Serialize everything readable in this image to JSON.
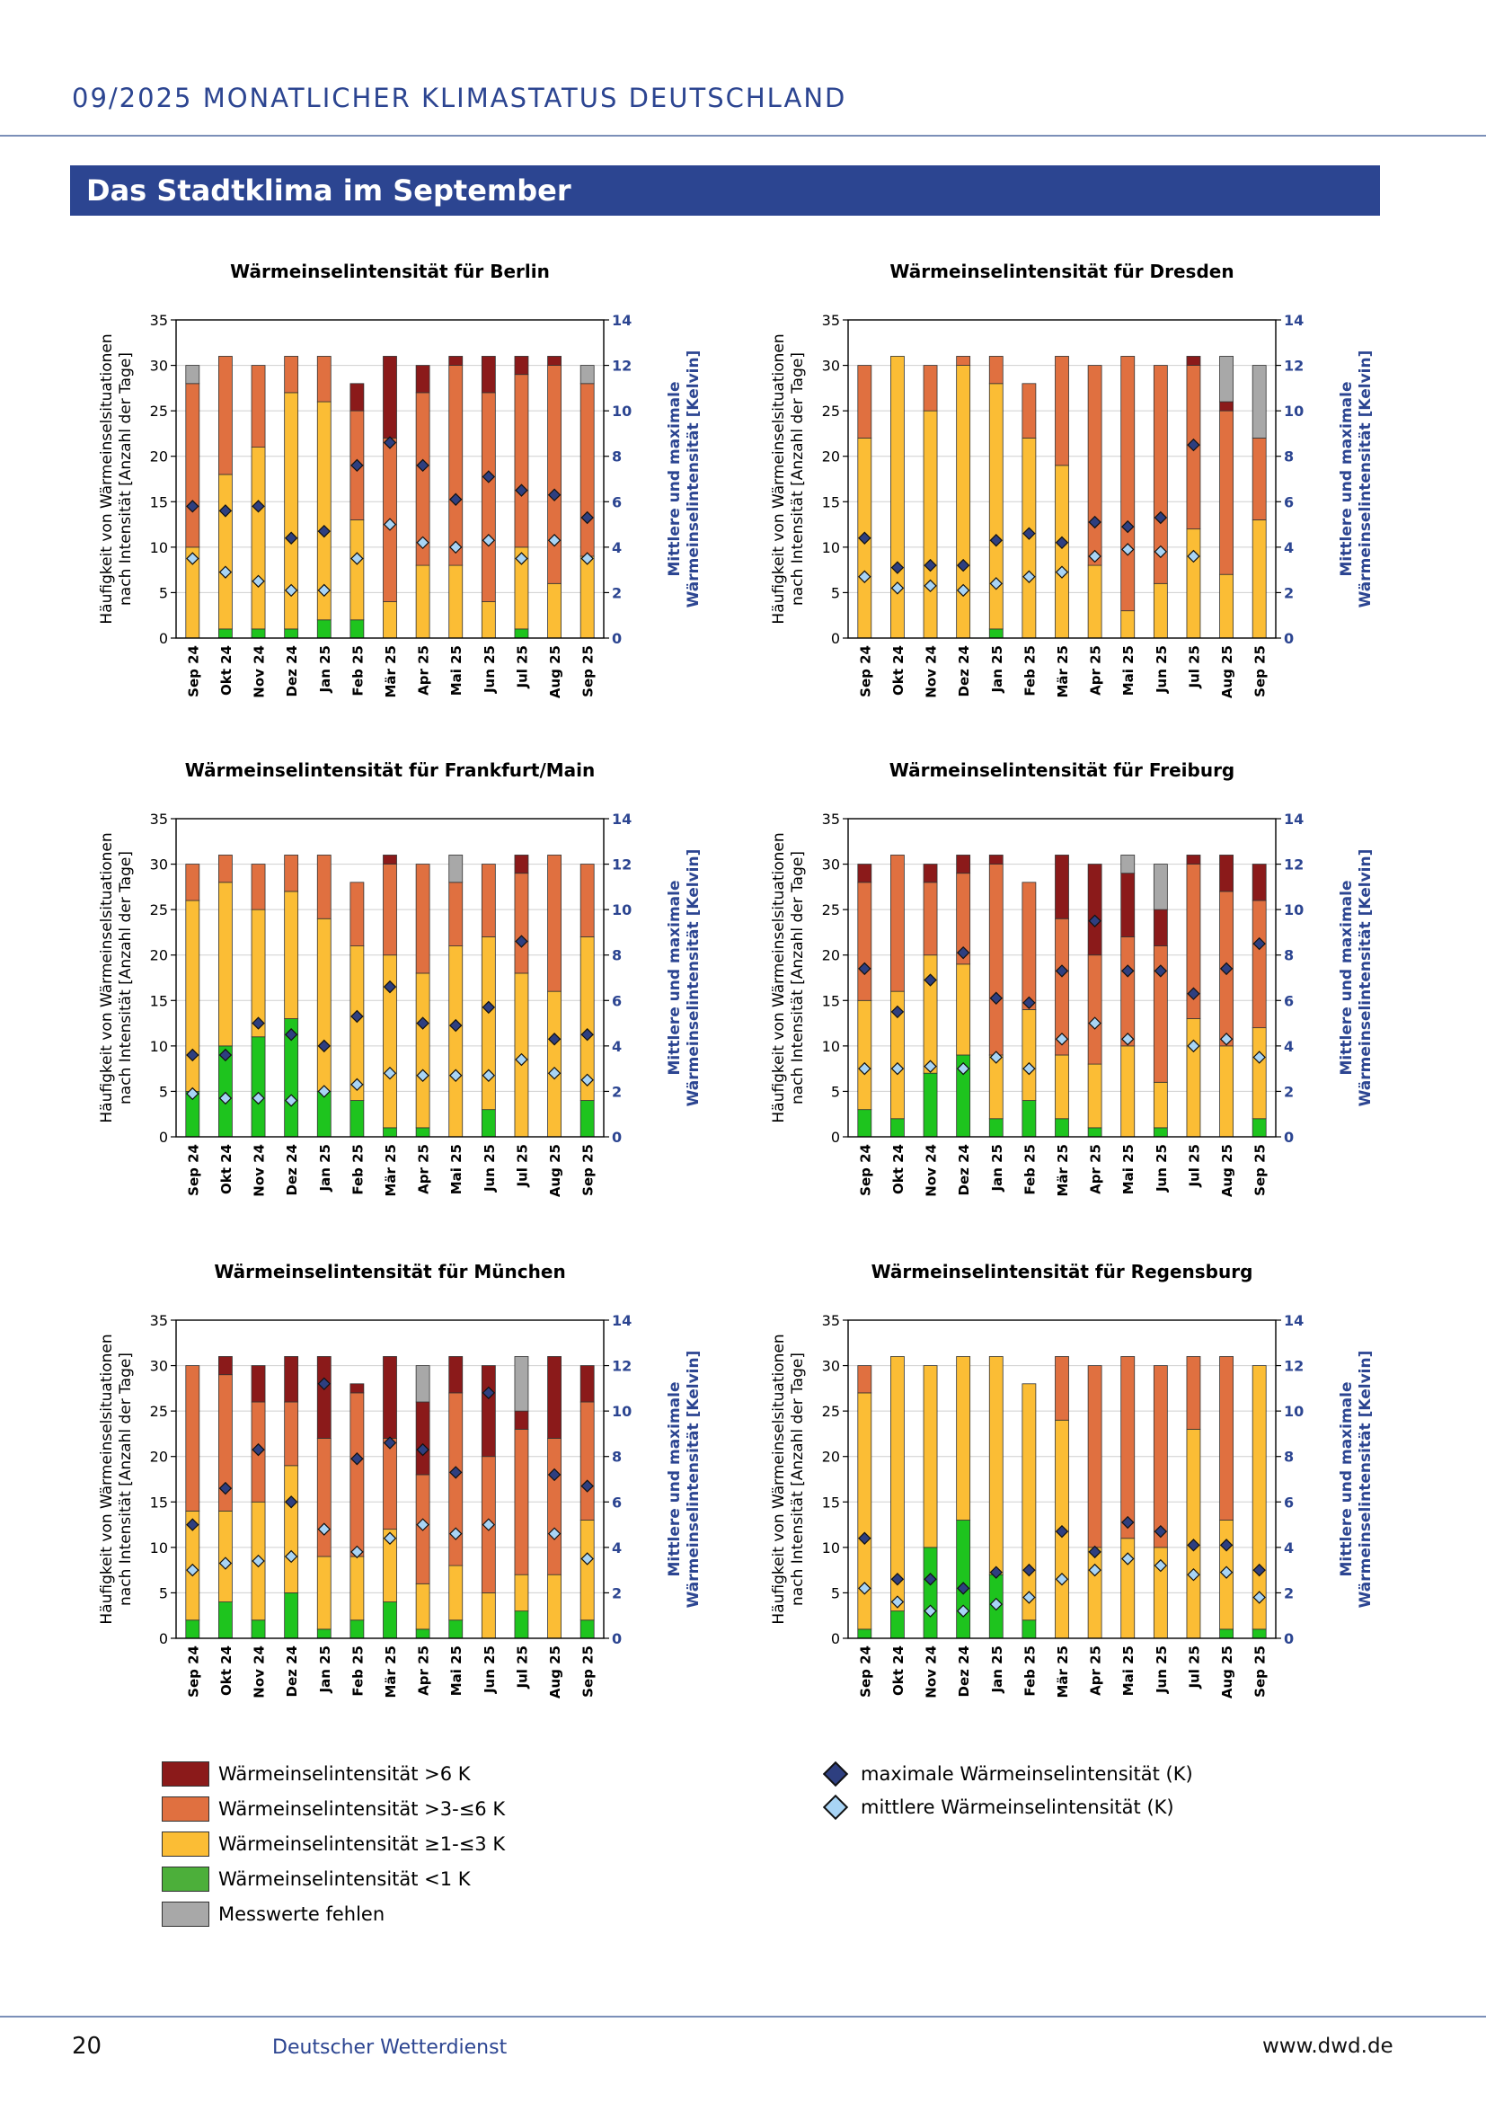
{
  "header": {
    "title": "09/2025  MONATLICHER KLIMASTATUS DEUTSCHLAND"
  },
  "banner": {
    "title": "Das Stadtklima im September"
  },
  "colors": {
    "c6": "#8b1a1a",
    "c3": "#e07040",
    "c1": "#fbbd35",
    "c0": "#1ec41e",
    "cm": "#a8a8a8",
    "max": "#2e3f80",
    "mean": "#a8d4f5",
    "accent": "#2c4591"
  },
  "axes": {
    "ylabel_left": [
      "Häufigkeit von Wärmeinselsituationen",
      "nach Intensität [Anzahl der Tage]"
    ],
    "ylabel_right": [
      "Mittlere und maximale",
      "Wärmeinselintensität [Kelvin]"
    ],
    "left_ticks": [
      "0",
      "5",
      "10",
      "15",
      "20",
      "25",
      "30",
      "35"
    ],
    "right_ticks": [
      "0",
      "2",
      "4",
      "6",
      "8",
      "10",
      "12",
      "14"
    ]
  },
  "chart_data": [
    {
      "type": "bar",
      "title": "Wärmeinselintensität für Berlin",
      "categories": [
        "Sep 24",
        "Okt 24",
        "Nov 24",
        "Dez 24",
        "Jan 25",
        "Feb 25",
        "Mär 25",
        "Apr 25",
        "Mai 25",
        "Jun 25",
        "Jul 25",
        "Aug 25",
        "Sep 25"
      ],
      "ylim": [
        0,
        35
      ],
      "y2lim": [
        0,
        14
      ],
      "series": [
        {
          "name": "Wärmeinselintensität <1 K",
          "values": [
            0,
            1,
            1,
            1,
            2,
            2,
            0,
            0,
            0,
            0,
            1,
            0,
            0
          ]
        },
        {
          "name": "Wärmeinselintensität ≥1-≤3 K",
          "values": [
            10,
            17,
            20,
            26,
            24,
            11,
            4,
            8,
            8,
            4,
            9,
            6,
            9
          ]
        },
        {
          "name": "Wärmeinselintensität >3-≤6 K",
          "values": [
            18,
            13,
            9,
            4,
            5,
            12,
            18,
            19,
            22,
            23,
            19,
            24,
            19
          ]
        },
        {
          "name": "Wärmeinselintensität >6 K",
          "values": [
            0,
            0,
            0,
            0,
            0,
            3,
            9,
            3,
            1,
            4,
            2,
            1,
            0
          ]
        },
        {
          "name": "Messwerte fehlen",
          "values": [
            2,
            0,
            0,
            0,
            0,
            0,
            0,
            0,
            0,
            0,
            0,
            0,
            2
          ]
        },
        {
          "name": "maximale Wärmeinselintensität (K)",
          "values": [
            5.8,
            5.6,
            5.8,
            4.4,
            4.7,
            7.6,
            8.6,
            7.6,
            6.1,
            7.1,
            6.5,
            6.3,
            5.3
          ]
        },
        {
          "name": "mittlere Wärmeinselintensität (K)",
          "values": [
            3.5,
            2.9,
            2.5,
            2.1,
            2.1,
            3.5,
            5.0,
            4.2,
            4.0,
            4.3,
            3.5,
            4.3,
            3.5
          ]
        }
      ]
    },
    {
      "type": "bar",
      "title": "Wärmeinselintensität für Dresden",
      "categories": [
        "Sep 24",
        "Okt 24",
        "Nov 24",
        "Dez 24",
        "Jan 25",
        "Feb 25",
        "Mär 25",
        "Apr 25",
        "Mai 25",
        "Jun 25",
        "Jul 25",
        "Aug 25",
        "Sep 25"
      ],
      "ylim": [
        0,
        35
      ],
      "y2lim": [
        0,
        14
      ],
      "series": [
        {
          "name": "Wärmeinselintensität <1 K",
          "values": [
            0,
            0,
            0,
            0,
            1,
            0,
            0,
            0,
            0,
            0,
            0,
            0,
            0
          ]
        },
        {
          "name": "Wärmeinselintensität ≥1-≤3 K",
          "values": [
            22,
            31,
            25,
            30,
            27,
            22,
            19,
            8,
            3,
            6,
            12,
            7,
            13
          ]
        },
        {
          "name": "Wärmeinselintensität >3-≤6 K",
          "values": [
            8,
            0,
            5,
            1,
            3,
            6,
            12,
            22,
            28,
            24,
            18,
            18,
            9
          ]
        },
        {
          "name": "Wärmeinselintensität >6 K",
          "values": [
            0,
            0,
            0,
            0,
            0,
            0,
            0,
            0,
            0,
            0,
            1,
            1,
            0
          ]
        },
        {
          "name": "Messwerte fehlen",
          "values": [
            0,
            0,
            0,
            0,
            0,
            0,
            0,
            0,
            0,
            0,
            0,
            5,
            8
          ]
        },
        {
          "name": "maximale Wärmeinselintensität (K)",
          "values": [
            4.4,
            3.1,
            3.2,
            3.2,
            4.3,
            4.6,
            4.2,
            5.1,
            4.9,
            5.3,
            8.5,
            null,
            null
          ]
        },
        {
          "name": "mittlere Wärmeinselintensität (K)",
          "values": [
            2.7,
            2.2,
            2.3,
            2.1,
            2.4,
            2.7,
            2.9,
            3.6,
            3.9,
            3.8,
            3.6,
            null,
            null
          ]
        }
      ]
    },
    {
      "type": "bar",
      "title": "Wärmeinselintensität für Frankfurt/Main",
      "categories": [
        "Sep 24",
        "Okt 24",
        "Nov 24",
        "Dez 24",
        "Jan 25",
        "Feb 25",
        "Mär 25",
        "Apr 25",
        "Mai 25",
        "Jun 25",
        "Jul 25",
        "Aug 25",
        "Sep 25"
      ],
      "ylim": [
        0,
        35
      ],
      "y2lim": [
        0,
        14
      ],
      "series": [
        {
          "name": "Wärmeinselintensität <1 K",
          "values": [
            5,
            10,
            11,
            13,
            5,
            4,
            1,
            1,
            0,
            3,
            0,
            0,
            4
          ]
        },
        {
          "name": "Wärmeinselintensität ≥1-≤3 K",
          "values": [
            21,
            18,
            14,
            14,
            19,
            17,
            19,
            17,
            21,
            19,
            18,
            16,
            18
          ]
        },
        {
          "name": "Wärmeinselintensität >3-≤6 K",
          "values": [
            4,
            3,
            5,
            4,
            7,
            7,
            10,
            12,
            7,
            8,
            11,
            15,
            8
          ]
        },
        {
          "name": "Wärmeinselintensität >6 K",
          "values": [
            0,
            0,
            0,
            0,
            0,
            0,
            1,
            0,
            0,
            0,
            2,
            0,
            0
          ]
        },
        {
          "name": "Messwerte fehlen",
          "values": [
            0,
            0,
            0,
            0,
            0,
            0,
            0,
            0,
            3,
            0,
            0,
            0,
            0
          ]
        },
        {
          "name": "maximale Wärmeinselintensität (K)",
          "values": [
            3.6,
            3.6,
            5.0,
            4.5,
            4.0,
            5.3,
            6.6,
            5.0,
            4.9,
            5.7,
            8.6,
            4.3,
            4.5
          ]
        },
        {
          "name": "mittlere Wärmeinselintensität (K)",
          "values": [
            1.9,
            1.7,
            1.7,
            1.6,
            2.0,
            2.3,
            2.8,
            2.7,
            2.7,
            2.7,
            3.4,
            2.8,
            2.5
          ]
        }
      ]
    },
    {
      "type": "bar",
      "title": "Wärmeinselintensität für Freiburg",
      "categories": [
        "Sep 24",
        "Okt 24",
        "Nov 24",
        "Dez 24",
        "Jan 25",
        "Feb 25",
        "Mär 25",
        "Apr 25",
        "Mai 25",
        "Jun 25",
        "Jul 25",
        "Aug 25",
        "Sep 25"
      ],
      "ylim": [
        0,
        35
      ],
      "y2lim": [
        0,
        14
      ],
      "series": [
        {
          "name": "Wärmeinselintensität <1 K",
          "values": [
            3,
            2,
            7,
            9,
            2,
            4,
            2,
            1,
            0,
            1,
            0,
            0,
            2
          ]
        },
        {
          "name": "Wärmeinselintensität ≥1-≤3 K",
          "values": [
            12,
            14,
            13,
            10,
            7,
            10,
            7,
            7,
            10,
            5,
            13,
            10,
            10
          ]
        },
        {
          "name": "Wärmeinselintensität >3-≤6 K",
          "values": [
            13,
            15,
            8,
            10,
            21,
            14,
            15,
            12,
            12,
            15,
            17,
            17,
            14
          ]
        },
        {
          "name": "Wärmeinselintensität >6 K",
          "values": [
            2,
            0,
            2,
            2,
            1,
            0,
            7,
            10,
            7,
            4,
            1,
            4,
            4
          ]
        },
        {
          "name": "Messwerte fehlen",
          "values": [
            0,
            0,
            0,
            0,
            0,
            0,
            0,
            0,
            2,
            5,
            0,
            0,
            0
          ]
        },
        {
          "name": "maximale Wärmeinselintensität (K)",
          "values": [
            7.4,
            5.5,
            6.9,
            8.1,
            6.1,
            5.9,
            7.3,
            9.5,
            7.3,
            7.3,
            6.3,
            7.4,
            8.5
          ]
        },
        {
          "name": "mittlere Wärmeinselintensität (K)",
          "values": [
            3.0,
            3.0,
            3.1,
            3.0,
            3.5,
            3.0,
            4.3,
            5.0,
            4.3,
            null,
            4.0,
            4.3,
            3.5
          ]
        }
      ]
    },
    {
      "type": "bar",
      "title": "Wärmeinselintensität für München",
      "categories": [
        "Sep 24",
        "Okt 24",
        "Nov 24",
        "Dez 24",
        "Jan 25",
        "Feb 25",
        "Mär 25",
        "Apr 25",
        "Mai 25",
        "Jun 25",
        "Jul 25",
        "Aug 25",
        "Sep 25"
      ],
      "ylim": [
        0,
        35
      ],
      "y2lim": [
        0,
        14
      ],
      "series": [
        {
          "name": "Wärmeinselintensität <1 K",
          "values": [
            2,
            4,
            2,
            5,
            1,
            2,
            4,
            1,
            2,
            0,
            3,
            0,
            2
          ]
        },
        {
          "name": "Wärmeinselintensität ≥1-≤3 K",
          "values": [
            12,
            10,
            13,
            14,
            8,
            7,
            8,
            5,
            6,
            5,
            4,
            7,
            11
          ]
        },
        {
          "name": "Wärmeinselintensität >3-≤6 K",
          "values": [
            16,
            15,
            11,
            7,
            13,
            18,
            10,
            12,
            19,
            15,
            16,
            15,
            13
          ]
        },
        {
          "name": "Wärmeinselintensität >6 K",
          "values": [
            0,
            2,
            4,
            5,
            9,
            1,
            9,
            8,
            4,
            10,
            2,
            9,
            4
          ]
        },
        {
          "name": "Messwerte fehlen",
          "values": [
            0,
            0,
            0,
            0,
            0,
            0,
            0,
            4,
            0,
            0,
            6,
            0,
            0
          ]
        },
        {
          "name": "maximale Wärmeinselintensität (K)",
          "values": [
            5.0,
            6.6,
            8.3,
            6.0,
            11.2,
            7.9,
            8.6,
            8.3,
            7.3,
            10.8,
            null,
            7.2,
            6.7
          ]
        },
        {
          "name": "mittlere Wärmeinselintensität (K)",
          "values": [
            3.0,
            3.3,
            3.4,
            3.6,
            4.8,
            3.8,
            4.4,
            5.0,
            4.6,
            5.0,
            null,
            4.6,
            3.5
          ]
        }
      ]
    },
    {
      "type": "bar",
      "title": "Wärmeinselintensität für Regensburg",
      "categories": [
        "Sep 24",
        "Okt 24",
        "Nov 24",
        "Dez 24",
        "Jan 25",
        "Feb 25",
        "Mär 25",
        "Apr 25",
        "Mai 25",
        "Jun 25",
        "Jul 25",
        "Aug 25",
        "Sep 25"
      ],
      "ylim": [
        0,
        35
      ],
      "y2lim": [
        0,
        14
      ],
      "series": [
        {
          "name": "Wärmeinselintensität <1 K",
          "values": [
            1,
            3,
            10,
            13,
            7,
            2,
            0,
            0,
            0,
            0,
            0,
            1,
            1
          ]
        },
        {
          "name": "Wärmeinselintensität ≥1-≤3 K",
          "values": [
            26,
            28,
            20,
            18,
            24,
            26,
            24,
            10,
            11,
            10,
            23,
            12,
            29
          ]
        },
        {
          "name": "Wärmeinselintensität >3-≤6 K",
          "values": [
            3,
            0,
            0,
            0,
            0,
            0,
            7,
            20,
            20,
            20,
            8,
            18,
            0
          ]
        },
        {
          "name": "Wärmeinselintensität >6 K",
          "values": [
            0,
            0,
            0,
            0,
            0,
            0,
            0,
            0,
            0,
            0,
            0,
            0,
            0
          ]
        },
        {
          "name": "Messwerte fehlen",
          "values": [
            0,
            0,
            0,
            0,
            0,
            0,
            0,
            0,
            0,
            0,
            0,
            0,
            0
          ]
        },
        {
          "name": "maximale Wärmeinselintensität (K)",
          "values": [
            4.4,
            2.6,
            2.6,
            2.2,
            2.9,
            3.0,
            4.7,
            3.8,
            5.1,
            4.7,
            4.1,
            4.1,
            3.0
          ]
        },
        {
          "name": "mittlere Wärmeinselintensität (K)",
          "values": [
            2.2,
            1.6,
            1.2,
            1.2,
            1.5,
            1.8,
            2.6,
            3.0,
            3.5,
            3.2,
            2.8,
            2.9,
            1.8
          ]
        }
      ]
    }
  ],
  "legend": {
    "c6": "Wärmeinselintensität >6 K",
    "c3": "Wärmeinselintensität >3-≤6 K",
    "c1": "Wärmeinselintensität ≥1-≤3 K",
    "c0": "Wärmeinselintensität <1 K",
    "cm": "Messwerte fehlen",
    "max": "maximale Wärmeinselintensität (K)",
    "mean": "mittlere Wärmeinselintensität (K)"
  },
  "footer": {
    "page": "20",
    "org": "Deutscher Wetterdienst",
    "url": "www.dwd.de"
  }
}
